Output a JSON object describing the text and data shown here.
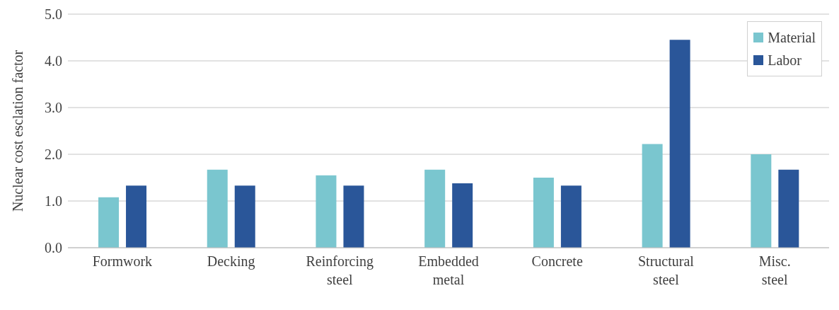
{
  "chart_data": {
    "type": "bar",
    "ylabel": "Nuclear cost esclation factor",
    "categories": [
      "Formwork",
      "Decking",
      "Reinforcing steel",
      "Embedded metal",
      "Concrete",
      "Structural steel",
      "Misc. steel"
    ],
    "series": [
      {
        "name": "Material",
        "color": "#7ac6cf",
        "values": [
          1.08,
          1.67,
          1.55,
          1.67,
          1.5,
          2.22,
          2.0
        ]
      },
      {
        "name": "Labor",
        "color": "#2a5699",
        "values": [
          1.33,
          1.33,
          1.33,
          1.38,
          1.33,
          4.45,
          1.67
        ]
      }
    ],
    "ylim": [
      0,
      5
    ],
    "yticks": [
      {
        "value": 0,
        "label": "0.0"
      },
      {
        "value": 1,
        "label": "1.0"
      },
      {
        "value": 2,
        "label": "2.0"
      },
      {
        "value": 3,
        "label": "3.0"
      },
      {
        "value": 4,
        "label": "4.0"
      },
      {
        "value": 5,
        "label": "5.0"
      }
    ],
    "grid": "y",
    "legend": "top right"
  }
}
